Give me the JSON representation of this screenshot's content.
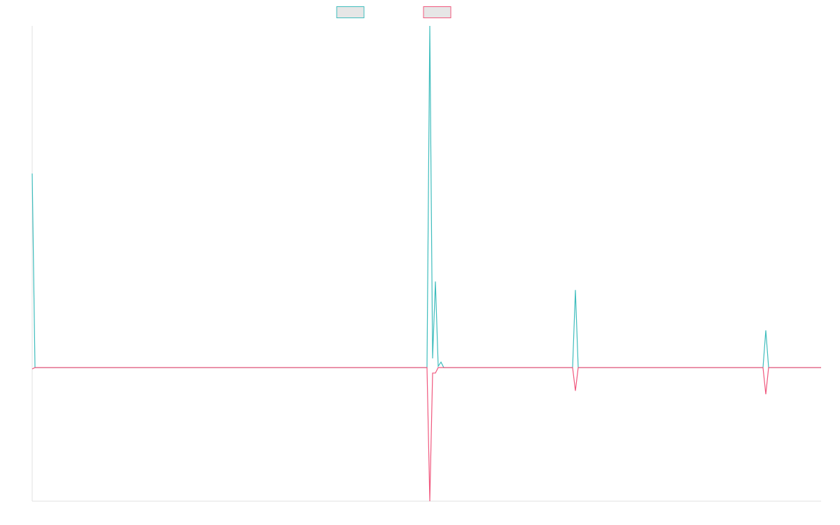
{
  "chart_data": {
    "type": "line",
    "x": [
      0,
      4,
      564,
      568,
      572,
      576,
      580,
      584,
      588,
      772,
      776,
      780,
      1044,
      1048,
      1052,
      1127
    ],
    "xlim": [
      0,
      1127
    ],
    "ylim": [
      -39.1,
      100
    ],
    "series": [
      {
        "color": "#3fbdbd",
        "values": [
          56.8,
          0,
          0,
          100,
          2.7,
          25.2,
          0.4,
          1.6,
          0,
          0,
          22.7,
          0,
          0,
          10.9,
          0,
          0
        ]
      },
      {
        "color": "#f0587e",
        "values": [
          -0.4,
          0,
          0,
          -39.1,
          -1.6,
          -1.6,
          0,
          0,
          0,
          0,
          -6.8,
          0,
          0,
          -7.8,
          0,
          0
        ]
      }
    ]
  }
}
